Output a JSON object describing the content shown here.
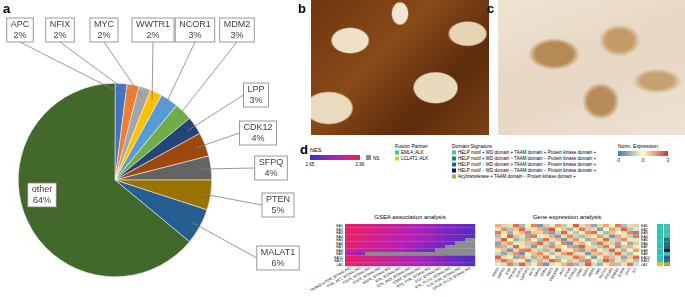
{
  "chart_data": {
    "type": "pie",
    "categories": [
      "APC",
      "NFIX",
      "MYC",
      "WWTR1",
      "NCOR1",
      "MDM2",
      "LPP",
      "CDK12",
      "SFPQ",
      "PTEN",
      "MALAT1",
      "other"
    ],
    "values": [
      2,
      2,
      2,
      2,
      3,
      3,
      3,
      4,
      4,
      5,
      6,
      64
    ],
    "value_labels": [
      "2%",
      "2%",
      "2%",
      "2%",
      "3%",
      "3%",
      "3%",
      "4%",
      "4%",
      "5%",
      "6%",
      "64%"
    ],
    "colors": [
      "#4472c4",
      "#ed7d31",
      "#a5a5a5",
      "#ffc000",
      "#5b9bd5",
      "#70ad47",
      "#264478",
      "#9e480e",
      "#636363",
      "#997300",
      "#255e91",
      "#43682b"
    ]
  },
  "panel_labels": [
    "a",
    "b",
    "c",
    "d"
  ],
  "panel_d": {
    "nes_legend": {
      "title": "NES",
      "range": [
        2.65,
        2.96
      ],
      "ticks": [
        2.65,
        2.96
      ],
      "ns_label": "NS",
      "ns_color": "#8c8c8c"
    },
    "fusion_partner_legend": {
      "title": "Fusion Partner",
      "entries": [
        {
          "name": "EML4::ALK",
          "color": "#2ec4b6"
        },
        {
          "name": "LCLAT1::ALK",
          "color": "#e8c31a"
        }
      ]
    },
    "domain_signature_legend": {
      "title": "Domain Signature",
      "entries": [
        {
          "name": "HELP motif + WD domain + TAAM domain + Protein kinase domain +",
          "color": "#3fbfad"
        },
        {
          "name": "HELP motif + WD domain − TAAM domain − Protein kinase domain +",
          "color": "#1f7a6e"
        },
        {
          "name": "HELP motif − WD domain + TAAM domain − Protein kinase domain +",
          "color": "#2e5aa8"
        },
        {
          "name": "HELP motif − WD domain − TAAM domain − Protein kinase domain +",
          "color": "#1a1a4a"
        },
        {
          "name": "Acyltransferase + TAAM domain − Protein kinase domain +",
          "color": "#b5a642"
        }
      ]
    },
    "expression_legend": {
      "title": "Norm. Expression",
      "range": [
        -3,
        3
      ],
      "ticks": [
        -3,
        0,
        3
      ]
    },
    "samples": [
      {
        "name": "EA1",
        "fusion_partner": "EML4::ALK",
        "domain_signature": "HELP motif + WD domain + TAAM domain + Protein kinase domain +"
      },
      {
        "name": "EA2",
        "fusion_partner": "EML4::ALK",
        "domain_signature": "HELP motif + WD domain + TAAM domain + Protein kinase domain +"
      },
      {
        "name": "EA3",
        "fusion_partner": "EML4::ALK",
        "domain_signature": "HELP motif + WD domain + TAAM domain + Protein kinase domain +"
      },
      {
        "name": "EA4",
        "fusion_partner": "EML4::ALK",
        "domain_signature": "HELP motif + WD domain + TAAM domain + Protein kinase domain +"
      },
      {
        "name": "EA5",
        "fusion_partner": "EML4::ALK",
        "domain_signature": "HELP motif + WD domain − TAAM domain − Protein kinase domain +"
      },
      {
        "name": "EA6",
        "fusion_partner": "EML4::ALK",
        "domain_signature": "HELP motif + WD domain − TAAM domain − Protein kinase domain +"
      },
      {
        "name": "EA7",
        "fusion_partner": "EML4::ALK",
        "domain_signature": "HELP motif − WD domain + TAAM domain − Protein kinase domain +"
      },
      {
        "name": "EA8",
        "fusion_partner": "EML4::ALK",
        "domain_signature": "HELP motif − WD domain − TAAM domain − Protein kinase domain +"
      },
      {
        "name": "EA9",
        "fusion_partner": "EML4::ALK",
        "domain_signature": "HELP motif + WD domain + TAAM domain + Protein kinase domain +"
      },
      {
        "name": "EA10",
        "fusion_partner": "EML4::ALK",
        "domain_signature": "HELP motif − WD domain + TAAM domain − Protein kinase domain +"
      },
      {
        "name": "EA11",
        "fusion_partner": "EML4::ALK",
        "domain_signature": "HELP motif + WD domain − TAAM domain − Protein kinase domain +"
      },
      {
        "name": "LA1",
        "fusion_partner": "LCLAT1::ALK",
        "domain_signature": "Acyltransferase + TAAM domain − Protein kinase domain +"
      }
    ],
    "gsea": {
      "title": "GSEA association analysis",
      "columns": [
        "TRANSLATION_SIGNALING",
        "PI3K_AKT_SIGNALING",
        "FGFR_SIGNALING",
        "EGFR_SIGNALING",
        "MAPK_SIGNALING",
        "RTK_SIGNALING",
        "RTK_RAS_SIGNALING",
        "ERBB_SIGNALING",
        "RTK_PI3K_SIGNALING",
        "EGF_SIGNALING",
        "RTK_PLCG_SIGNALING",
        "TCR_PI3K_SIGNALING",
        "GPCR_PLCB_SIGNALING"
      ],
      "cells": [
        [
          2.93,
          2.92,
          2.9,
          2.88,
          2.86,
          2.84,
          2.82,
          2.8,
          2.78,
          2.76,
          2.74,
          2.72,
          2.7
        ],
        [
          2.94,
          2.91,
          2.89,
          2.87,
          2.85,
          2.83,
          2.81,
          2.79,
          2.77,
          2.75,
          2.73,
          2.71,
          2.69
        ],
        [
          2.92,
          2.9,
          2.89,
          2.86,
          2.85,
          2.82,
          2.8,
          2.79,
          2.76,
          2.74,
          2.72,
          2.7,
          2.68
        ],
        [
          2.95,
          2.93,
          2.9,
          2.88,
          2.86,
          2.84,
          2.83,
          2.8,
          2.78,
          2.75,
          2.73,
          2.71,
          2.69
        ],
        [
          2.93,
          2.91,
          2.88,
          2.87,
          2.84,
          2.82,
          2.81,
          2.78,
          2.77,
          2.74,
          2.72,
          2.7,
          null
        ],
        [
          2.92,
          2.9,
          2.88,
          2.85,
          2.84,
          2.81,
          2.8,
          2.77,
          2.75,
          2.73,
          2.71,
          null,
          null
        ],
        [
          2.91,
          2.89,
          2.87,
          2.85,
          2.83,
          2.81,
          2.78,
          2.76,
          2.74,
          2.72,
          null,
          null,
          null
        ],
        [
          2.9,
          2.88,
          2.86,
          2.84,
          2.82,
          2.8,
          2.77,
          2.75,
          2.73,
          null,
          null,
          null,
          null
        ],
        [
          2.8,
          2.76,
          null,
          null,
          null,
          null,
          null,
          null,
          null,
          null,
          null,
          null,
          null
        ],
        [
          2.94,
          2.92,
          2.9,
          2.88,
          2.85,
          2.83,
          2.81,
          2.79,
          2.77,
          2.75,
          2.72,
          2.7,
          2.68
        ],
        [
          2.93,
          2.91,
          2.89,
          2.87,
          2.85,
          2.83,
          2.8,
          2.78,
          2.76,
          2.74,
          2.72,
          2.7,
          2.67
        ],
        [
          2.96,
          2.93,
          2.91,
          2.89,
          2.87,
          2.84,
          2.82,
          2.8,
          2.78,
          2.76,
          2.73,
          2.71,
          2.68
        ]
      ]
    },
    "expression": {
      "title": "Gene expression analysis",
      "columns": [
        "KRAS",
        "MAPK3",
        "EGF",
        "PIK3CA",
        "STAT3",
        "MAP2K1",
        "AKT1",
        "NRAS",
        "CDK4",
        "RAF1",
        "PDGFRA",
        "JAK2",
        "MTOR",
        "PTPN11",
        "GRB2",
        "SOS1",
        "HRAS",
        "SRC",
        "PLCG1",
        "PIK3R1",
        "ERBB2",
        "EGFR",
        "MYC",
        "KIT"
      ],
      "cells": [
        [
          1.2,
          -0.8,
          0.5,
          2.1,
          -1.5,
          0.3,
          1.8,
          -2.2,
          0.9,
          -0.4,
          1.6,
          -1.1,
          0.2,
          2.4,
          -0.6,
          1.0,
          -1.9,
          0.7,
          1.3,
          -0.3,
          2.0,
          -1.4,
          0.6,
          -0.9
        ],
        [
          -0.5,
          1.7,
          -1.2,
          0.8,
          2.2,
          -0.7,
          0.4,
          1.1,
          -1.8,
          2.5,
          -0.2,
          0.9,
          -1.6,
          0.3,
          1.9,
          -1.0,
          0.6,
          -2.1,
          0.1,
          1.4,
          -0.8,
          2.3,
          -1.3,
          0.5
        ],
        [
          2.0,
          0.4,
          -1.7,
          -0.3,
          1.1,
          1.9,
          -0.9,
          0.6,
          1.4,
          -2.0,
          0.8,
          2.2,
          -0.5,
          -1.2,
          0.3,
          1.6,
          2.1,
          -0.4,
          -1.5,
          0.9,
          0.2,
          -0.6,
          1.8,
          -2.3
        ],
        [
          -1.3,
          -0.2,
          2.3,
          1.0,
          -0.6,
          -1.8,
          2.0,
          0.3,
          -0.4,
          1.2,
          -2.1,
          0.5,
          1.7,
          -0.9,
          -1.4,
          0.8,
          0.1,
          1.5,
          -0.7,
          -2.2,
          1.3,
          0.4,
          -1.0,
          1.9
        ],
        [
          0.7,
          2.4,
          0.1,
          -1.6,
          -0.9,
          1.3,
          -0.2,
          -1.4,
          2.1,
          0.5,
          1.0,
          -2.3,
          0.8,
          1.6,
          -0.3,
          -1.7,
          1.2,
          0.4,
          2.2,
          -0.8,
          -1.1,
          1.7,
          0.3,
          -0.5
        ],
        [
          -2.0,
          0.9,
          1.5,
          -0.4,
          0.6,
          -1.1,
          1.3,
          2.2,
          -0.8,
          -1.6,
          0.4,
          1.8,
          -2.4,
          0.7,
          1.1,
          -0.2,
          -1.3,
          2.0,
          0.5,
          -0.9,
          1.6,
          -0.1,
          -1.7,
          0.8
        ],
        [
          1.5,
          -1.4,
          -0.6,
          2.2,
          0.3,
          0.8,
          -2.1,
          -0.5,
          1.0,
          1.7,
          -0.9,
          0.2,
          1.4,
          -1.8,
          2.3,
          0.6,
          -0.7,
          -1.2,
          1.9,
          0.4,
          -2.0,
          0.9,
          1.1,
          -0.3
        ],
        [
          0.3,
          1.1,
          -2.2,
          -0.8,
          1.8,
          2.0,
          0.5,
          -1.0,
          -1.5,
          0.7,
          2.4,
          -0.6,
          -0.1,
          1.3,
          -2.0,
          0.9,
          1.6,
          -0.4,
          -0.9,
          2.1,
          0.6,
          -1.5,
          -0.2,
          1.4
        ],
        [
          -0.9,
          -1.9,
          0.8,
          1.6,
          -2.3,
          0.2,
          1.0,
          1.7,
          0.4,
          -1.3,
          -0.5,
          1.4,
          2.1,
          -0.7,
          0.5,
          -2.2,
          0.9,
          1.2,
          -0.6,
          -1.0,
          2.2,
          0.7,
          -1.4,
          0.1
        ],
        [
          2.3,
          0.6,
          -0.3,
          -1.9,
          1.4,
          -0.5,
          -1.6,
          0.9,
          2.0,
          0.1,
          -1.2,
          -0.8,
          0.6,
          2.0,
          1.2,
          -0.4,
          -2.1,
          0.3,
          1.5,
          1.1,
          -0.6,
          -1.9,
          0.8,
          2.2
        ],
        [
          -1.1,
          2.1,
          1.2,
          0.4,
          -0.2,
          -2.0,
          0.7,
          -1.3,
          0.6,
          2.2,
          1.5,
          -0.3,
          -1.0,
          0.5,
          -1.7,
          1.9,
          0.2,
          -0.9,
          2.3,
          -1.6,
          0.4,
          1.0,
          -0.5,
          -1.2
        ],
        [
          0.4,
          -0.7,
          1.9,
          -1.2,
          2.3,
          0.9,
          -0.4,
          1.5,
          -2.3,
          -0.6,
          0.2,
          1.1,
          1.8,
          -1.5,
          0.7,
          2.4,
          -0.8,
          -1.6,
          0.3,
          1.2,
          -1.3,
          0.5,
          2.0,
          -0.7
        ]
      ]
    }
  }
}
